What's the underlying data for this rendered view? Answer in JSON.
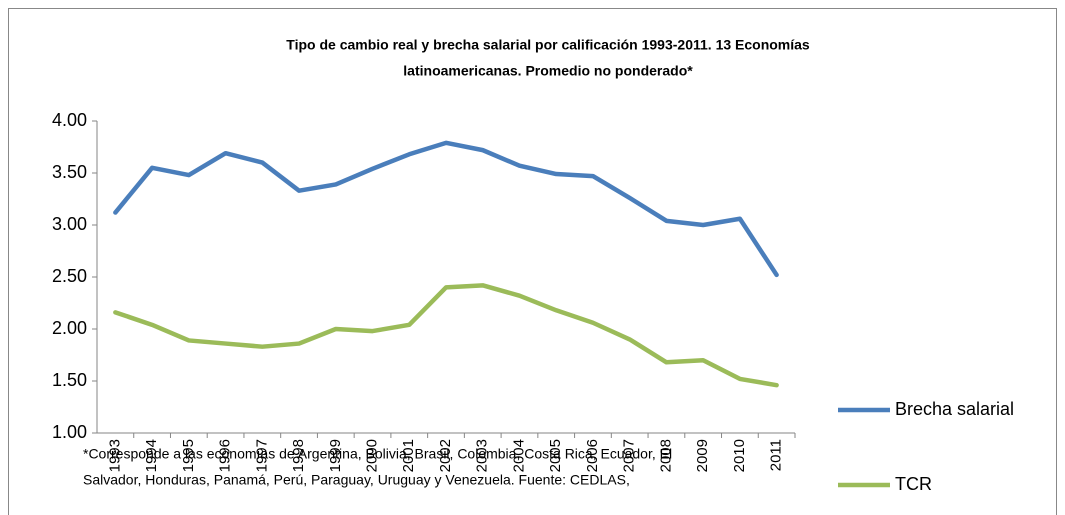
{
  "chart_data": {
    "type": "line",
    "title": [
      "Tipo de cambio real y brecha salarial por calificación 1993-2011. 13 Economías",
      "latinoamericanas. Promedio no ponderado*"
    ],
    "categories": [
      "1993",
      "1994",
      "1995",
      "1996",
      "1997",
      "1998",
      "1999",
      "2000",
      "2001",
      "2002",
      "2003",
      "2004",
      "2005",
      "2006",
      "2007",
      "2008",
      "2009",
      "2010",
      "2011"
    ],
    "series": [
      {
        "name": "Brecha salarial",
        "color": "#4a7ebb",
        "values": [
          3.12,
          3.55,
          3.48,
          3.69,
          3.6,
          3.33,
          3.39,
          3.54,
          3.68,
          3.79,
          3.72,
          3.57,
          3.49,
          3.47,
          3.26,
          3.04,
          3.0,
          3.06,
          2.52
        ]
      },
      {
        "name": "TCR",
        "color": "#9bbb59",
        "values": [
          2.16,
          2.04,
          1.89,
          1.86,
          1.83,
          1.86,
          2.0,
          1.98,
          2.04,
          2.4,
          2.42,
          2.32,
          2.18,
          2.06,
          1.9,
          1.68,
          1.7,
          1.52,
          1.46
        ]
      }
    ],
    "ylim": [
      1,
      4
    ],
    "yticks": [
      {
        "value": 1,
        "label": "1.00"
      },
      {
        "value": 1.5,
        "label": "1.50"
      },
      {
        "value": 2,
        "label": "2.00"
      },
      {
        "value": 2.5,
        "label": "2.50"
      },
      {
        "value": 3,
        "label": "3.00"
      },
      {
        "value": 3.5,
        "label": "3.50"
      },
      {
        "value": 4,
        "label": "4.00"
      }
    ],
    "footnote": [
      "*Corresponde a las economías de Argentina, Bolivia, Brasil, Colombia, Costa Rica, Ecuador, El",
      "Salvador, Honduras, Panamá, Perú, Paraguay, Uruguay y Venezuela. Fuente: CEDLAS,"
    ]
  }
}
